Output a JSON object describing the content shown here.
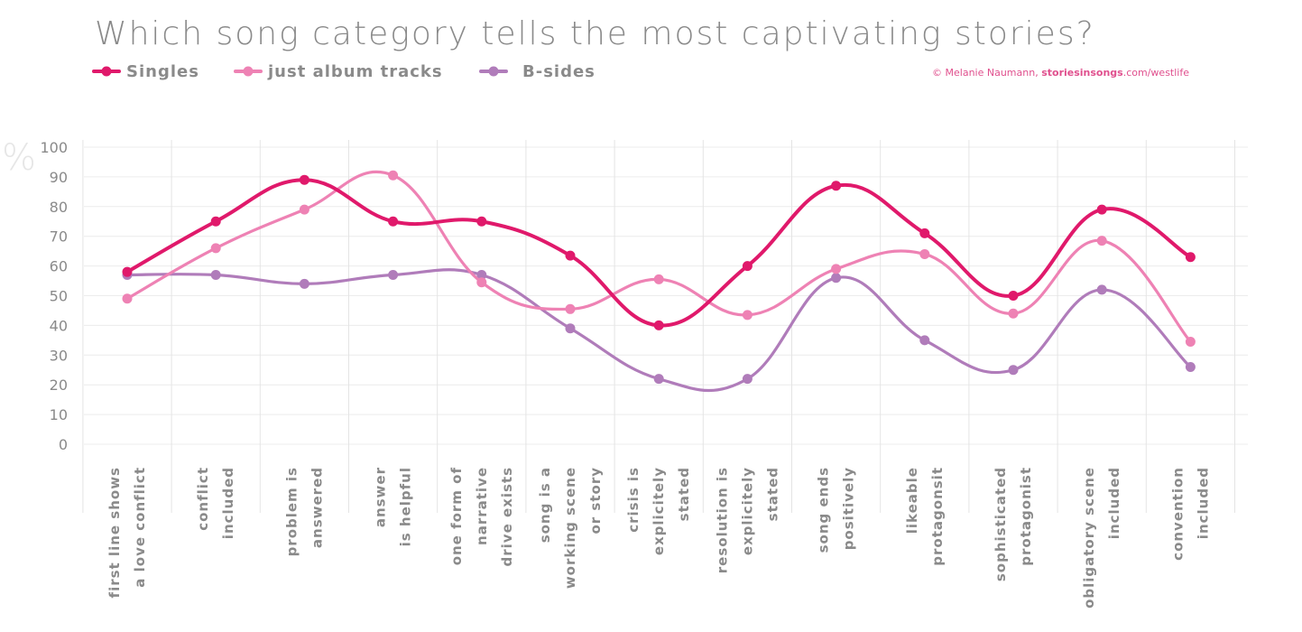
{
  "chart_data": {
    "type": "line",
    "title": "Which song category tells the most captivating stories?",
    "ylabel": "%",
    "ylim": [
      0,
      100
    ],
    "yticks": [
      0,
      10,
      20,
      30,
      40,
      50,
      60,
      70,
      80,
      90,
      100
    ],
    "grid": true,
    "legend_position": "top-left",
    "credit": {
      "prefix": "© Melanie Naumann, ",
      "site_bold": "storiesinsongs",
      "site_rest": ".com/westlife"
    },
    "categories": [
      [
        "first line shows",
        "a love conflict"
      ],
      [
        "conflict",
        "included"
      ],
      [
        "problem is",
        "answered"
      ],
      [
        "answer",
        "is helpful"
      ],
      [
        "one form of",
        "narrative",
        "drive exists"
      ],
      [
        "song is a",
        "working scene",
        "or story"
      ],
      [
        "crisis is",
        "explicitely",
        "stated"
      ],
      [
        "resolution is",
        "explicitely",
        "stated"
      ],
      [
        "song ends",
        "positively"
      ],
      [
        "likeable",
        "protagonsit"
      ],
      [
        "sophisticated",
        "protagonist"
      ],
      [
        "obligatory scene",
        "included"
      ],
      [
        "convention",
        "included"
      ]
    ],
    "series": [
      {
        "name": "Singles",
        "color": "#e0196b",
        "values": [
          58,
          75,
          89,
          75,
          75,
          63.5,
          40,
          60,
          87,
          71,
          50,
          79,
          63
        ]
      },
      {
        "name": "just album tracks",
        "color": "#ee82b4",
        "values": [
          49,
          66,
          79,
          90.5,
          54.5,
          45.5,
          55.5,
          43.5,
          59,
          64,
          44,
          68.5,
          34.5
        ]
      },
      {
        "name": "B-sides",
        "color": "#b07cba",
        "values": [
          57,
          57,
          54,
          57,
          57,
          39,
          22,
          22,
          56,
          35,
          25,
          52,
          26
        ]
      }
    ]
  }
}
